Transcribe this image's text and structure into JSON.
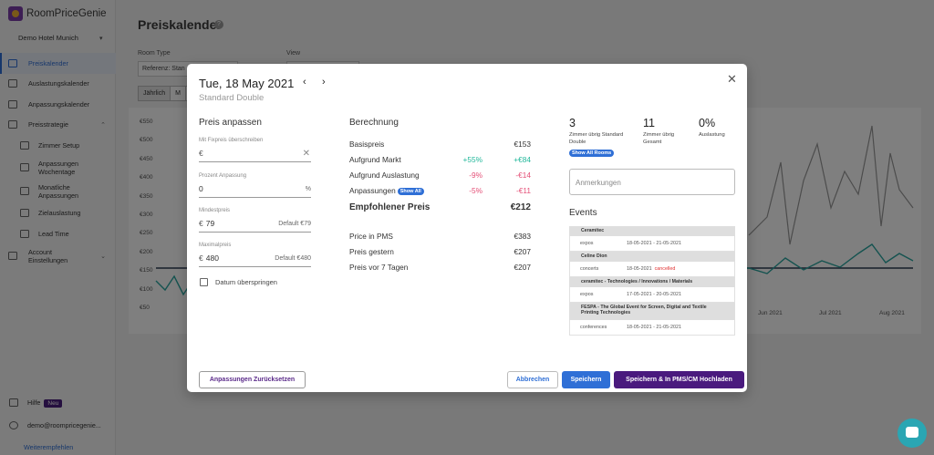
{
  "app": {
    "logo": "RoomPriceGenie",
    "hotel": "Demo Hotel Munich",
    "nav": [
      {
        "label": "Preiskalender"
      },
      {
        "label": "Auslastungskalender"
      },
      {
        "label": "Anpassungskalender"
      },
      {
        "label": "Preisstrategie"
      },
      {
        "label": "Zimmer Setup"
      },
      {
        "label": "Anpassungen Wochentage"
      },
      {
        "label": "Monatliche Anpassungen"
      },
      {
        "label": "Zielauslastung"
      },
      {
        "label": "Lead Time"
      },
      {
        "label": "Account Einstellungen"
      }
    ],
    "help_label": "Hilfe",
    "help_badge": "Neu",
    "user": "demo@roompricegenie...",
    "recommend": "Weiterempfehlen"
  },
  "page": {
    "title": "Preiskalender",
    "help_icon": "?",
    "room_type_label": "Room Type",
    "room_type_value": "Referenz: Stan",
    "view_label": "View",
    "toggle": [
      "Jährlich",
      "M"
    ]
  },
  "bg_chart": {
    "yticks": [
      "€550",
      "€500",
      "€450",
      "€400",
      "€350",
      "€300",
      "€250",
      "€200",
      "€150",
      "€100",
      "€50"
    ],
    "xticks": [
      "Jun 2021",
      "Jul 2021",
      "Aug 2021"
    ]
  },
  "modal": {
    "date": "Tue, 18 May 2021",
    "prev": "‹",
    "next": "›",
    "room": "Standard Double",
    "close": "✕",
    "adjust": {
      "title": "Preis anpassen",
      "fixed_label": "Mit Fixpreis überschreiben",
      "fixed_prefix": "€",
      "fixed_value": "",
      "percent_label": "Prozent Anpassung",
      "percent_value": "0",
      "percent_suffix": "%",
      "min_label": "Mindestpreis",
      "min_prefix": "€",
      "min_value": "79",
      "min_default": "Default €79",
      "max_label": "Maximalpreis",
      "max_prefix": "€",
      "max_value": "480",
      "max_default": "Default €480",
      "skip_label": "Datum überspringen"
    },
    "calc": {
      "title": "Berechnung",
      "rows": [
        {
          "label": "Basispreis",
          "pct": "",
          "amount": "€153"
        },
        {
          "label": "Aufgrund Markt",
          "pct": "+55%",
          "amount": "+€84"
        },
        {
          "label": "Aufgrund Auslastung",
          "pct": "-9%",
          "amount": "-€14"
        },
        {
          "label": "Anpassungen",
          "pct": "-5%",
          "amount": "-€11"
        }
      ],
      "show_all": "Show All",
      "recommended_label": "Empfohlener Preis",
      "recommended_value": "€212",
      "pms_label": "Price in PMS",
      "pms_value": "€383",
      "yesterday_label": "Preis gestern",
      "yesterday_value": "€207",
      "week_label": "Preis vor 7 Tagen",
      "week_value": "€207"
    },
    "stats": [
      {
        "value": "3",
        "label": "Zimmer übrig Standard Double"
      },
      {
        "value": "11",
        "label": "Zimmer übrig Gesamt"
      },
      {
        "value": "0%",
        "label": "Auslastung"
      }
    ],
    "show_rooms": "Show All Rooms",
    "notes_placeholder": "Anmerkungen",
    "events_title": "Events",
    "events": [
      {
        "name": "Ceramitec",
        "category": "expos",
        "dates": "18-05-2021 - 21-05-2021",
        "status": ""
      },
      {
        "name": "Celine Dion",
        "category": "concerts",
        "dates": "18-05-2021",
        "status": "cancelled"
      },
      {
        "name": "ceramitec - Technologies / Innovations / Materials",
        "category": "expos",
        "dates": "17-05-2021 - 20-05-2021",
        "status": ""
      },
      {
        "name": "FESPA - The Global Event for Screen, Digital and Textile Printing Technologies",
        "category": "conferences",
        "dates": "18-05-2021 - 21-05-2021",
        "status": ""
      }
    ],
    "buttons": {
      "reset": "Anpassungen Zurücksetzen",
      "cancel": "Abbrechen",
      "save": "Speichern",
      "upload": "Speichern & In PMS/CM Hochladen"
    }
  }
}
